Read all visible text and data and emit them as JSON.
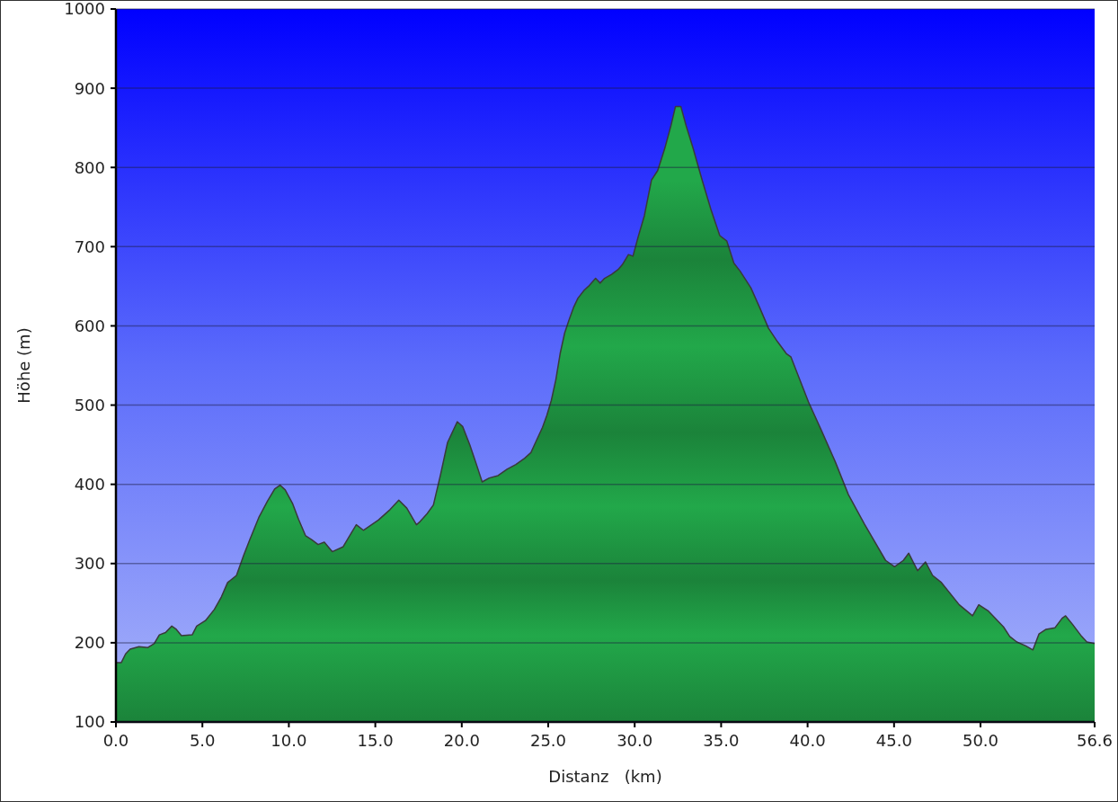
{
  "chart_data": {
    "type": "area",
    "xlabel": "Distanz   (km)",
    "ylabel": "Höhe (m)",
    "x": [
      0,
      0.31,
      0.56,
      0.82,
      1.33,
      1.85,
      2.21,
      2.51,
      2.87,
      3.23,
      3.49,
      3.79,
      4.41,
      4.67,
      5.18,
      5.69,
      6.1,
      6.46,
      6.97,
      7.38,
      7.74,
      8.26,
      8.77,
      9.18,
      9.49,
      9.79,
      10.21,
      10.56,
      10.97,
      11.33,
      11.69,
      12.05,
      12.51,
      13.13,
      13.54,
      13.9,
      14.31,
      15.18,
      15.85,
      16.36,
      16.82,
      17.38,
      17.59,
      18,
      18.36,
      18.77,
      19.18,
      19.74,
      20.05,
      20.46,
      20.82,
      21.18,
      21.59,
      22.1,
      22.62,
      23.13,
      23.64,
      24,
      24.31,
      24.67,
      24.92,
      25.18,
      25.44,
      25.69,
      25.95,
      26.21,
      26.46,
      26.72,
      27.08,
      27.33,
      27.74,
      28,
      28.26,
      28.67,
      29.03,
      29.28,
      29.64,
      29.9,
      30.21,
      30.56,
      30.97,
      31.33,
      31.74,
      32.1,
      32.36,
      32.67,
      32.97,
      33.38,
      33.9,
      34.41,
      34.92,
      35.33,
      35.74,
      36.1,
      36.72,
      37.23,
      37.74,
      38.26,
      38.77,
      39.03,
      40.05,
      40.82,
      41.59,
      42.36,
      43.28,
      44.51,
      45.03,
      45.54,
      45.85,
      46.36,
      46.82,
      47.23,
      47.74,
      48.77,
      49.54,
      49.9,
      50.46,
      51.33,
      51.69,
      52.1,
      52.62,
      53.03,
      53.38,
      53.79,
      54.31,
      54.72,
      54.92,
      55.33,
      55.85,
      56.15,
      56.6
    ],
    "series": [
      {
        "color": "#22a84a",
        "values": [
          175,
          175,
          186,
          192,
          195,
          194,
          199,
          210,
          213,
          221,
          217,
          209,
          210,
          221,
          228,
          242,
          258,
          276,
          285,
          310,
          330,
          358,
          379,
          394,
          399,
          393,
          376,
          356,
          335,
          330,
          324,
          327,
          315,
          321,
          336,
          349,
          342,
          355,
          368,
          380,
          370,
          349,
          353,
          363,
          374,
          412,
          453,
          479,
          473,
          450,
          427,
          403,
          408,
          411,
          419,
          425,
          433,
          440,
          455,
          472,
          487,
          506,
          532,
          565,
          591,
          608,
          623,
          635,
          645,
          650,
          660,
          654,
          660,
          665,
          671,
          677,
          690,
          688,
          713,
          739,
          784,
          796,
          824,
          853,
          877,
          877,
          853,
          824,
          784,
          747,
          714,
          707,
          679,
          669,
          648,
          623,
          597,
          580,
          565,
          561,
          504,
          467,
          429,
          387,
          350,
          304,
          296,
          304,
          313,
          291,
          302,
          285,
          276,
          248,
          234,
          248,
          240,
          220,
          208,
          201,
          196,
          191,
          211,
          217,
          219,
          231,
          234,
          223,
          208,
          201,
          199
        ]
      }
    ],
    "xlim": [
      0,
      56.6
    ],
    "xticks": [
      {
        "value": 0,
        "label": "0.0"
      },
      {
        "value": 5,
        "label": "5.0"
      },
      {
        "value": 10,
        "label": "10.0"
      },
      {
        "value": 15,
        "label": "15.0"
      },
      {
        "value": 20,
        "label": "20.0"
      },
      {
        "value": 25,
        "label": "25.0"
      },
      {
        "value": 30,
        "label": "30.0"
      },
      {
        "value": 35,
        "label": "35.0"
      },
      {
        "value": 40,
        "label": "40.0"
      },
      {
        "value": 45,
        "label": "45.0"
      },
      {
        "value": 50,
        "label": "50.0"
      },
      56.6
    ],
    "ylim": [
      100,
      1000
    ],
    "yticks": [
      100,
      200,
      300,
      400,
      500,
      600,
      700,
      800,
      900,
      1000
    ],
    "grid": "y"
  }
}
